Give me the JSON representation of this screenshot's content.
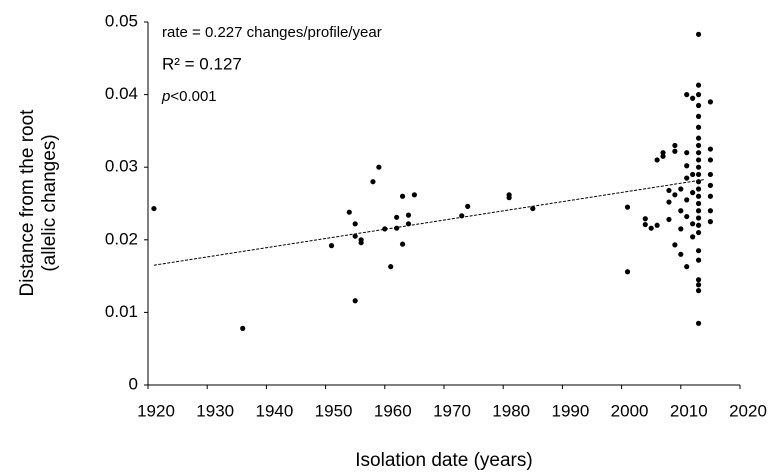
{
  "chart_data": {
    "type": "scatter",
    "x_label": "Isolation date (years)",
    "y_label": [
      "Distance from the root",
      "(allelic changes)"
    ],
    "annotations": [
      "rate = 0.227 changes/profile/year",
      "R² = 0.127"
    ],
    "p_value": {
      "symbol": "p",
      "text": "<0.001"
    },
    "color": "#000000",
    "xlim": [
      1920,
      2020
    ],
    "xticks": [
      1920,
      1930,
      1940,
      1950,
      1960,
      1970,
      1980,
      1990,
      2000,
      2010,
      2020
    ],
    "ylim": [
      0,
      0.05
    ],
    "yticks": [
      0,
      0.01,
      0.02,
      0.03,
      0.04,
      0.05
    ],
    "trendline": {
      "x": [
        1921,
        2014
      ],
      "values": [
        0.0165,
        0.0283
      ]
    },
    "x": [
      1921,
      1936,
      1951,
      1954,
      1955,
      1955,
      1955,
      1956,
      1956,
      1958,
      1959,
      1960,
      1961,
      1962,
      1962,
      1963,
      1963,
      1964,
      1964,
      1965,
      1973,
      1974,
      1981,
      1981,
      1985,
      2001,
      2001,
      2004,
      2004,
      2005,
      2006,
      2006,
      2007,
      2007,
      2008,
      2008,
      2008,
      2009,
      2009,
      2009,
      2009,
      2010,
      2010,
      2010,
      2010,
      2011,
      2011,
      2011,
      2011,
      2011,
      2011,
      2011,
      2012,
      2012,
      2012,
      2012,
      2012,
      2013,
      2013,
      2013,
      2013,
      2013,
      2013,
      2013,
      2013,
      2013,
      2013,
      2013,
      2013,
      2013,
      2013,
      2013,
      2013,
      2013,
      2013,
      2013,
      2013,
      2013,
      2013,
      2013,
      2013,
      2013,
      2013,
      2015,
      2015,
      2015,
      2015,
      2015,
      2015,
      2015,
      2015
    ],
    "values": [
      0.0243,
      0.0078,
      0.0192,
      0.0238,
      0.0222,
      0.0205,
      0.0116,
      0.02,
      0.0196,
      0.028,
      0.03,
      0.0215,
      0.0163,
      0.0231,
      0.0216,
      0.026,
      0.0194,
      0.0234,
      0.0222,
      0.0262,
      0.0233,
      0.0246,
      0.0262,
      0.0258,
      0.0243,
      0.0245,
      0.0156,
      0.0229,
      0.0221,
      0.0216,
      0.022,
      0.031,
      0.0315,
      0.032,
      0.0268,
      0.0252,
      0.0228,
      0.033,
      0.0322,
      0.0193,
      0.0262,
      0.027,
      0.024,
      0.0215,
      0.018,
      0.0302,
      0.0255,
      0.0232,
      0.0163,
      0.04,
      0.032,
      0.0285,
      0.0395,
      0.029,
      0.0222,
      0.0204,
      0.0265,
      0.0483,
      0.0413,
      0.04,
      0.0385,
      0.037,
      0.0355,
      0.034,
      0.033,
      0.032,
      0.031,
      0.03,
      0.029,
      0.028,
      0.027,
      0.026,
      0.025,
      0.024,
      0.023,
      0.022,
      0.021,
      0.0185,
      0.0172,
      0.0145,
      0.0138,
      0.013,
      0.0085,
      0.039,
      0.0325,
      0.031,
      0.029,
      0.0275,
      0.026,
      0.024,
      0.0225
    ]
  }
}
